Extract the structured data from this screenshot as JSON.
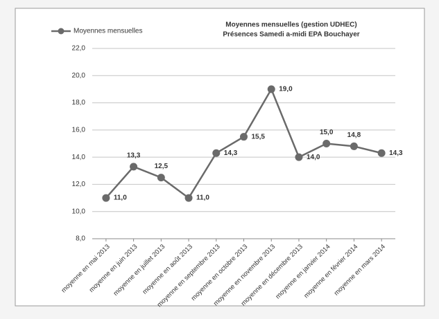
{
  "chart_data": {
    "type": "line",
    "title": [
      "Moyennes mensuelles (gestion UDHEC)",
      "Présences Samedi a-midi  EPA Bouchayer"
    ],
    "categories": [
      "moyenne en mai 2013",
      "moyenne en juin 2013",
      "moyenne en juillet 2013",
      "moyenne en août 2013",
      "moyenne en septembre 2013",
      "moyenne en octobre 2013",
      "moyenne en novembre 2013",
      "moyenne en décembre 2013",
      "moyenne en janvier 2014",
      "moyenne en février 2014",
      "moyenne en mars 2014"
    ],
    "series": [
      {
        "name": "Moyennes mensuelles",
        "color": "#6a6a6a",
        "values": [
          11.0,
          13.3,
          12.5,
          11.0,
          14.3,
          15.5,
          19.0,
          14.0,
          15.0,
          14.8,
          14.3
        ],
        "value_labels": [
          "11,0",
          "13,3",
          "12,5",
          "11,0",
          "14,3",
          "15,5",
          "19,0",
          "14,0",
          "15,0",
          "14,8",
          "14,3"
        ]
      }
    ],
    "ylim": [
      8,
      22
    ],
    "yticks": [
      {
        "value": 8,
        "label": "8,0"
      },
      {
        "value": 10,
        "label": "10,0"
      },
      {
        "value": 12,
        "label": "12,0"
      },
      {
        "value": 14,
        "label": "14,0"
      },
      {
        "value": 16,
        "label": "16,0"
      },
      {
        "value": 18,
        "label": "18,0"
      },
      {
        "value": 20,
        "label": "20,0"
      },
      {
        "value": 22,
        "label": "22,0"
      }
    ],
    "grid": true,
    "legend": "top-left"
  }
}
